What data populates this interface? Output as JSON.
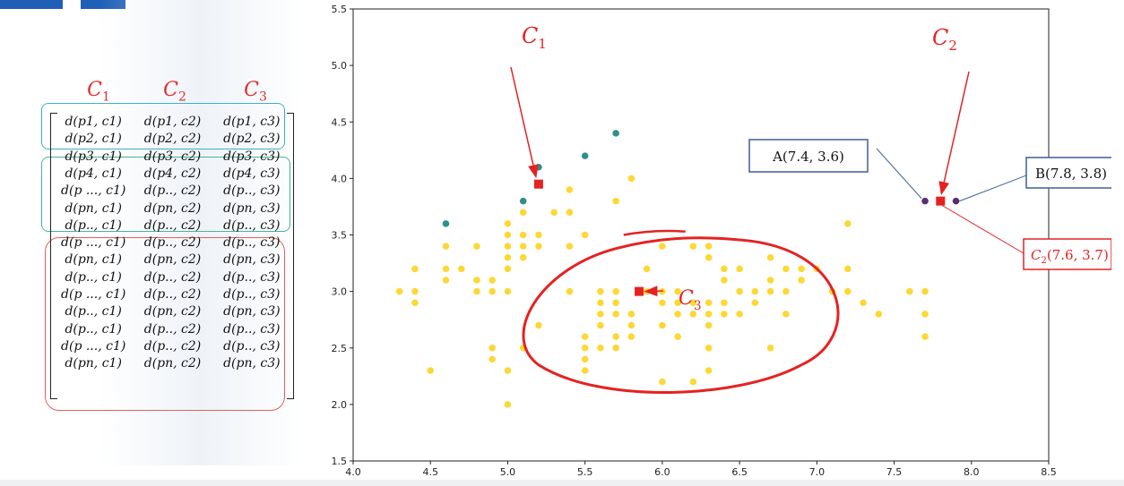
{
  "matrix": {
    "headers": [
      "C",
      "C",
      "C"
    ],
    "header_subs": [
      "1",
      "2",
      "3"
    ],
    "rows": [
      [
        "d(p1, c1)",
        "d(p1, c2)",
        "d(p1, c3)"
      ],
      [
        "d(p2, c1)",
        "d(p2, c2)",
        "d(p2, c3)"
      ],
      [
        "d(p3, c1)",
        "d(p3, c2)",
        "d(p3, c3)"
      ],
      [
        "d(p4, c1)",
        "d(p4, c2)",
        "d(p4, c3)"
      ],
      [
        "d(p ..., c1)",
        "d(p.., c2)",
        "d(p.., c3)"
      ],
      [
        "d(pn, c1)",
        "d(pn, c2)",
        "d(pn, c3)"
      ],
      [
        "d(p.., c1)",
        "d(p.., c2)",
        "d(p.., c3)"
      ],
      [
        "d(p ..., c1)",
        "d(p.., c2)",
        "d(p.., c3)"
      ],
      [
        "d(pn, c1)",
        "d(pn, c2)",
        "d(pn, c3)"
      ],
      [
        "d(p.., c1)",
        "d(p.., c2)",
        "d(p.., c3)"
      ],
      [
        "d(p ..., c1)",
        "d(p.., c2)",
        "d(p.., c3)"
      ],
      [
        "d(p.., c1)",
        "d(pn, c2)",
        "d(pn, c3)"
      ],
      [
        "d(p.., c1)",
        "d(p.., c2)",
        "d(p.., c3)"
      ],
      [
        "d(p ..., c1)",
        "d(p.., c2)",
        "d(p.., c3)"
      ],
      [
        "d(pn, c1)",
        "d(pn, c2)",
        "d(pn, c3)"
      ]
    ]
  },
  "chart_data": {
    "type": "scatter",
    "xlim": [
      4.0,
      8.5
    ],
    "ylim": [
      1.5,
      5.5
    ],
    "xticks": [
      "4.0",
      "4.5",
      "5.0",
      "5.5",
      "6.0",
      "6.5",
      "7.0",
      "7.5",
      "8.0",
      "8.5"
    ],
    "yticks": [
      "1.5",
      "2.0",
      "2.5",
      "3.0",
      "3.5",
      "4.0",
      "4.5",
      "5.0",
      "5.5"
    ],
    "grid": false,
    "colors": {
      "yellow": "#fdd835",
      "teal": "#2e8f8f",
      "purple": "#5b2c6f",
      "centroid": "#e52222",
      "annotation": "#e52222",
      "box_border": "#3f5f95"
    },
    "series": [
      {
        "color": "yellow",
        "points": [
          [
            4.3,
            3.0
          ],
          [
            4.4,
            3.2
          ],
          [
            4.4,
            3.0
          ],
          [
            4.4,
            2.9
          ],
          [
            4.5,
            2.3
          ],
          [
            4.6,
            3.4
          ],
          [
            4.6,
            3.2
          ],
          [
            4.6,
            3.1
          ],
          [
            4.7,
            3.2
          ],
          [
            4.8,
            3.4
          ],
          [
            4.8,
            3.1
          ],
          [
            4.8,
            3.0
          ],
          [
            4.9,
            3.1
          ],
          [
            4.9,
            3.0
          ],
          [
            4.9,
            2.5
          ],
          [
            4.9,
            2.4
          ],
          [
            5.0,
            3.6
          ],
          [
            5.0,
            3.5
          ],
          [
            5.0,
            3.4
          ],
          [
            5.0,
            3.3
          ],
          [
            5.0,
            3.2
          ],
          [
            5.0,
            3.0
          ],
          [
            5.0,
            2.3
          ],
          [
            5.0,
            2.0
          ],
          [
            5.1,
            3.8
          ],
          [
            5.1,
            3.7
          ],
          [
            5.1,
            3.5
          ],
          [
            5.1,
            3.4
          ],
          [
            5.1,
            3.3
          ],
          [
            5.1,
            2.5
          ],
          [
            5.2,
            3.5
          ],
          [
            5.2,
            3.4
          ],
          [
            5.2,
            2.7
          ],
          [
            5.3,
            3.7
          ],
          [
            5.4,
            3.9
          ],
          [
            5.4,
            3.7
          ],
          [
            5.4,
            3.4
          ],
          [
            5.4,
            3.0
          ],
          [
            5.5,
            3.5
          ],
          [
            5.5,
            2.6
          ],
          [
            5.5,
            2.5
          ],
          [
            5.5,
            2.4
          ],
          [
            5.5,
            2.3
          ],
          [
            5.6,
            3.0
          ],
          [
            5.6,
            2.9
          ],
          [
            5.6,
            2.8
          ],
          [
            5.6,
            2.7
          ],
          [
            5.6,
            2.5
          ],
          [
            5.7,
            3.8
          ],
          [
            5.7,
            3.0
          ],
          [
            5.7,
            2.9
          ],
          [
            5.7,
            2.8
          ],
          [
            5.7,
            2.6
          ],
          [
            5.7,
            2.5
          ],
          [
            5.8,
            4.0
          ],
          [
            5.8,
            2.8
          ],
          [
            5.8,
            2.7
          ],
          [
            5.8,
            2.6
          ],
          [
            5.9,
            3.2
          ],
          [
            5.9,
            3.0
          ],
          [
            6.0,
            3.4
          ],
          [
            6.0,
            3.0
          ],
          [
            6.0,
            2.9
          ],
          [
            6.0,
            2.7
          ],
          [
            6.0,
            2.2
          ],
          [
            6.1,
            3.0
          ],
          [
            6.1,
            2.9
          ],
          [
            6.1,
            2.8
          ],
          [
            6.1,
            2.6
          ],
          [
            6.2,
            3.4
          ],
          [
            6.2,
            2.9
          ],
          [
            6.2,
            2.8
          ],
          [
            6.2,
            2.2
          ],
          [
            6.3,
            3.4
          ],
          [
            6.3,
            3.3
          ],
          [
            6.3,
            2.9
          ],
          [
            6.3,
            2.8
          ],
          [
            6.3,
            2.7
          ],
          [
            6.3,
            2.5
          ],
          [
            6.3,
            2.3
          ],
          [
            6.4,
            3.2
          ],
          [
            6.4,
            3.1
          ],
          [
            6.4,
            2.9
          ],
          [
            6.4,
            2.8
          ],
          [
            6.5,
            3.2
          ],
          [
            6.5,
            3.0
          ],
          [
            6.5,
            2.8
          ],
          [
            6.6,
            3.0
          ],
          [
            6.6,
            2.9
          ],
          [
            6.7,
            3.3
          ],
          [
            6.7,
            3.1
          ],
          [
            6.7,
            3.0
          ],
          [
            6.7,
            2.5
          ],
          [
            6.8,
            3.2
          ],
          [
            6.8,
            3.0
          ],
          [
            6.8,
            2.8
          ],
          [
            6.9,
            3.2
          ],
          [
            6.9,
            3.1
          ],
          [
            7.0,
            3.2
          ],
          [
            7.1,
            3.0
          ],
          [
            7.2,
            3.6
          ],
          [
            7.2,
            3.2
          ],
          [
            7.2,
            3.0
          ],
          [
            7.3,
            2.9
          ],
          [
            7.4,
            2.8
          ],
          [
            7.6,
            3.0
          ],
          [
            7.7,
            3.0
          ],
          [
            7.7,
            2.8
          ],
          [
            7.7,
            2.6
          ]
        ]
      },
      {
        "color": "teal",
        "points": [
          [
            4.6,
            3.6
          ],
          [
            5.1,
            3.8
          ],
          [
            5.2,
            4.1
          ],
          [
            5.5,
            4.2
          ],
          [
            5.7,
            4.4
          ]
        ]
      },
      {
        "color": "purple",
        "points": [
          [
            7.7,
            3.8
          ],
          [
            7.9,
            3.8
          ]
        ]
      }
    ],
    "centroids": [
      {
        "x": 5.2,
        "y": 3.95,
        "label_letter": "C",
        "label_sub": "1"
      },
      {
        "x": 7.8,
        "y": 3.8,
        "label_letter": "C",
        "label_sub": "2"
      },
      {
        "x": 5.85,
        "y": 3.0,
        "label_letter": "C",
        "label_sub": "3"
      }
    ],
    "annotations": {
      "box_a": "A(7.4, 3.6)",
      "box_b": "B(7.8, 3.8)",
      "box_c2_letter": "C",
      "box_c2_sub": "2",
      "box_c2_value": "(7.6, 3.7)"
    }
  }
}
